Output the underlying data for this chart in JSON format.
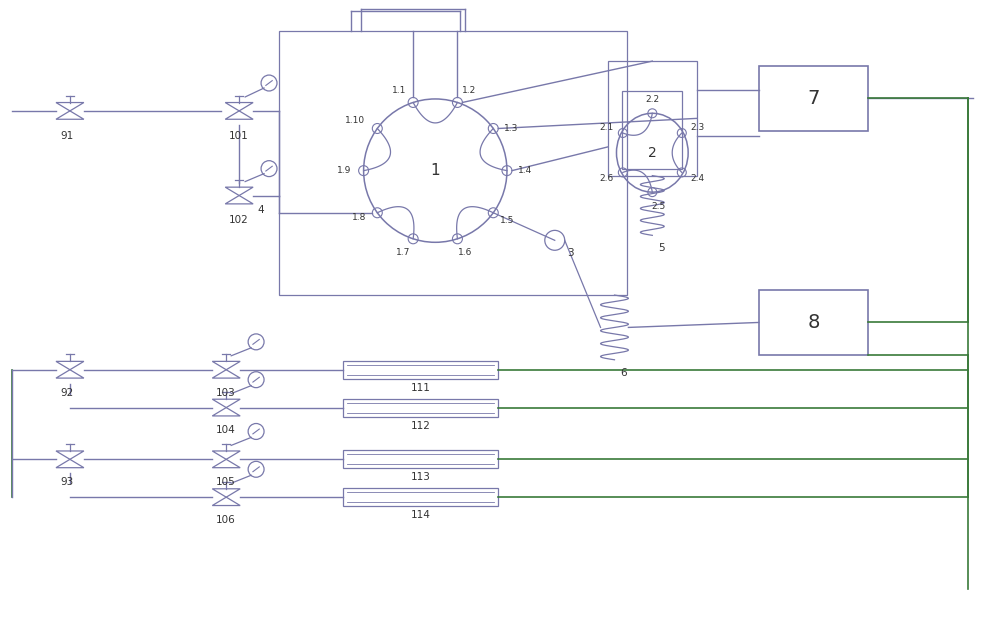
{
  "lc": "#7878aa",
  "gc": "#3a7a3a",
  "tc": "#333333",
  "lw": 1.0,
  "lw_g": 1.2,
  "fig_w": 10.0,
  "fig_h": 6.22
}
